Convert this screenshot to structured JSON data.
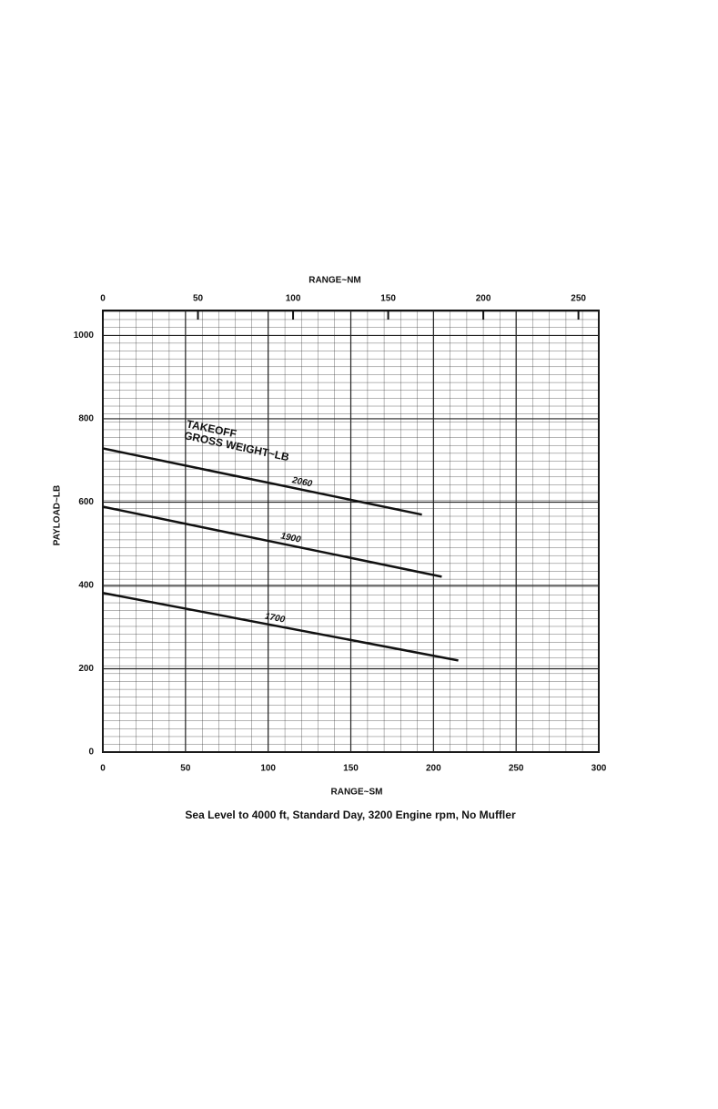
{
  "chart_data": {
    "type": "line",
    "x_label": "RANGE~SM",
    "x2_label": "RANGE~NM",
    "y_label": "PAYLOAD~LB",
    "caption": "Sea Level to 4000 ft, Standard Day, 3200 Engine rpm, No Muffler",
    "annotation": [
      "TAKEOFF",
      "GROSS WEIGHT~LB"
    ],
    "xlim": [
      0,
      300
    ],
    "xticks": [
      0,
      50,
      100,
      150,
      200,
      250,
      300
    ],
    "x2lim": [
      0,
      260.7
    ],
    "x2ticks": [
      0,
      50,
      100,
      150,
      200,
      250
    ],
    "ylim": [
      0,
      1060
    ],
    "yticks": [
      0,
      200,
      400,
      600,
      800,
      1000
    ],
    "grid": true,
    "series": [
      {
        "name": "2060",
        "color": "#111111",
        "x": [
          0,
          193
        ],
        "values": [
          729,
          570
        ]
      },
      {
        "name": "1900",
        "color": "#111111",
        "x": [
          0,
          205
        ],
        "values": [
          589,
          421
        ]
      },
      {
        "name": "1700",
        "color": "#111111",
        "x": [
          0,
          215
        ],
        "values": [
          382,
          220
        ]
      }
    ]
  }
}
